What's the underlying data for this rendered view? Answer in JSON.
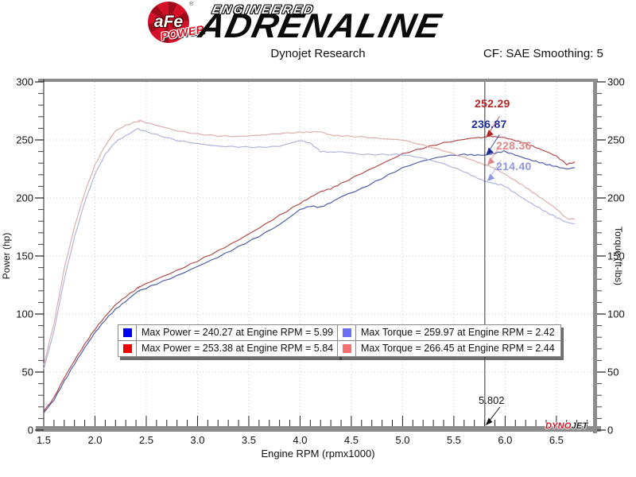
{
  "header": {
    "brand": {
      "circle_text": "aFe",
      "power_text": "POWER",
      "line1": "ENGINEERED",
      "line2": "ADRENALINE"
    },
    "title": "Dynojet Research",
    "correction": "CF: SAE Smoothing: 5"
  },
  "chart_data": {
    "type": "line",
    "title": "Dynojet Research",
    "xlabel": "Engine RPM (rpmx1000)",
    "ylabel_left": "Power (hp)",
    "ylabel_right": "Torque (ft-lbs)",
    "xlim": [
      1.5,
      6.85
    ],
    "ylim": [
      0,
      300
    ],
    "x_tick_labels": [
      "1.5",
      "2.0",
      "2.5",
      "3.0",
      "3.5",
      "4.0",
      "4.5",
      "5.0",
      "5.5",
      "6.0",
      "6.5"
    ],
    "x_ticks": [
      1.5,
      2.0,
      2.5,
      3.0,
      3.5,
      4.0,
      4.5,
      5.0,
      5.5,
      6.0,
      6.5
    ],
    "y_ticks": [
      0,
      50,
      100,
      150,
      200,
      250,
      300
    ],
    "grid": true,
    "x": [
      1.5,
      1.6,
      1.7,
      1.8,
      1.9,
      2.0,
      2.1,
      2.2,
      2.3,
      2.42,
      2.44,
      2.6,
      2.8,
      3.0,
      3.2,
      3.4,
      3.6,
      3.8,
      4.0,
      4.1,
      4.2,
      4.3,
      4.4,
      4.6,
      4.8,
      5.0,
      5.2,
      5.4,
      5.6,
      5.7,
      5.802,
      5.84,
      5.9,
      5.99,
      6.1,
      6.2,
      6.3,
      6.4,
      6.5,
      6.6,
      6.68
    ],
    "series": [
      {
        "name": "Power run 1 (blue)",
        "axis": "left",
        "color": "#3d4fa0",
        "values": [
          15,
          26,
          42,
          57,
          71,
          84,
          95,
          104,
          111,
          119.8,
          120.2,
          126,
          133,
          141,
          149,
          158,
          167,
          177,
          190,
          193,
          192,
          196,
          201,
          208,
          217,
          226,
          232,
          236,
          237.5,
          237,
          236.87,
          237.5,
          238.5,
          240.27,
          237,
          234,
          231.5,
          229,
          227,
          225,
          226
        ]
      },
      {
        "name": "Power run 2 (red)",
        "axis": "left",
        "color": "#aa3c3c",
        "values": [
          16,
          28,
          45,
          60,
          74,
          87,
          98,
          108,
          115,
          122.6,
          123.8,
          130,
          137.5,
          145.7,
          154.4,
          163.8,
          174.1,
          184.9,
          195.4,
          200.5,
          205.5,
          208,
          212.4,
          221.2,
          229.5,
          238,
          243,
          247.5,
          250.5,
          251.8,
          252.29,
          253.38,
          252.8,
          252,
          249.5,
          247,
          243.5,
          240,
          236,
          229,
          231
        ]
      },
      {
        "name": "Torque run 1 (periwinkle)",
        "axis": "right",
        "color": "#a8aed8",
        "values": [
          52.5,
          85.3,
          129.8,
          166.3,
          196.3,
          220.6,
          237.6,
          248.3,
          253.5,
          259.97,
          258.7,
          254.5,
          249.5,
          246.8,
          244.6,
          244.1,
          243.6,
          244.6,
          249.5,
          247.2,
          240.1,
          239.4,
          239.9,
          237.5,
          237.4,
          237.4,
          234.3,
          229.5,
          222.7,
          218.4,
          214.4,
          213.6,
          212.3,
          210.7,
          204.1,
          198.2,
          193.0,
          187.9,
          183.4,
          179.0,
          177.7
        ]
      },
      {
        "name": "Torque run 2 (salmon)",
        "axis": "right",
        "color": "#d8a8a4",
        "values": [
          56.0,
          91.9,
          139.0,
          175.1,
          204.6,
          228.5,
          245.1,
          257.8,
          262.6,
          266.1,
          266.45,
          262.6,
          257.9,
          255.1,
          253.4,
          253.0,
          254.0,
          255.5,
          256.6,
          256.8,
          257.0,
          254.1,
          253.5,
          252.6,
          251.1,
          250.0,
          245.4,
          240.7,
          234.9,
          232.0,
          228.36,
          227.9,
          225.1,
          220.9,
          214.8,
          209.2,
          203.0,
          196.9,
          190.7,
          182.2,
          181.6
        ]
      }
    ],
    "cursor": {
      "rpm": 5.802,
      "label": "5.802"
    },
    "callouts": [
      {
        "text": "252.29",
        "value": 252.29,
        "color": "#b42525"
      },
      {
        "text": "236.87",
        "value": 236.87,
        "color": "#1d2d9a"
      },
      {
        "text": "228.36",
        "value": 228.36,
        "color": "#e08888"
      },
      {
        "text": "214.40",
        "value": 214.4,
        "color": "#8e99e0"
      }
    ]
  },
  "legend": {
    "groups": [
      {
        "rows": [
          {
            "swatch": "#0000f2",
            "text": "Max Power = 240.27 at Engine RPM = 5.99"
          },
          {
            "swatch": "#f20000",
            "text": "Max Power = 253.38 at Engine RPM = 5.84"
          }
        ]
      },
      {
        "rows": [
          {
            "swatch": "#6a6ef0",
            "text": "Max Torque = 259.97 at Engine RPM = 2.42"
          },
          {
            "swatch": "#f57070",
            "text": "Max Torque = 266.45 at Engine RPM = 2.44"
          }
        ]
      }
    ]
  },
  "footer_logo": {
    "part1": "DYNO",
    "part2": "JET"
  }
}
